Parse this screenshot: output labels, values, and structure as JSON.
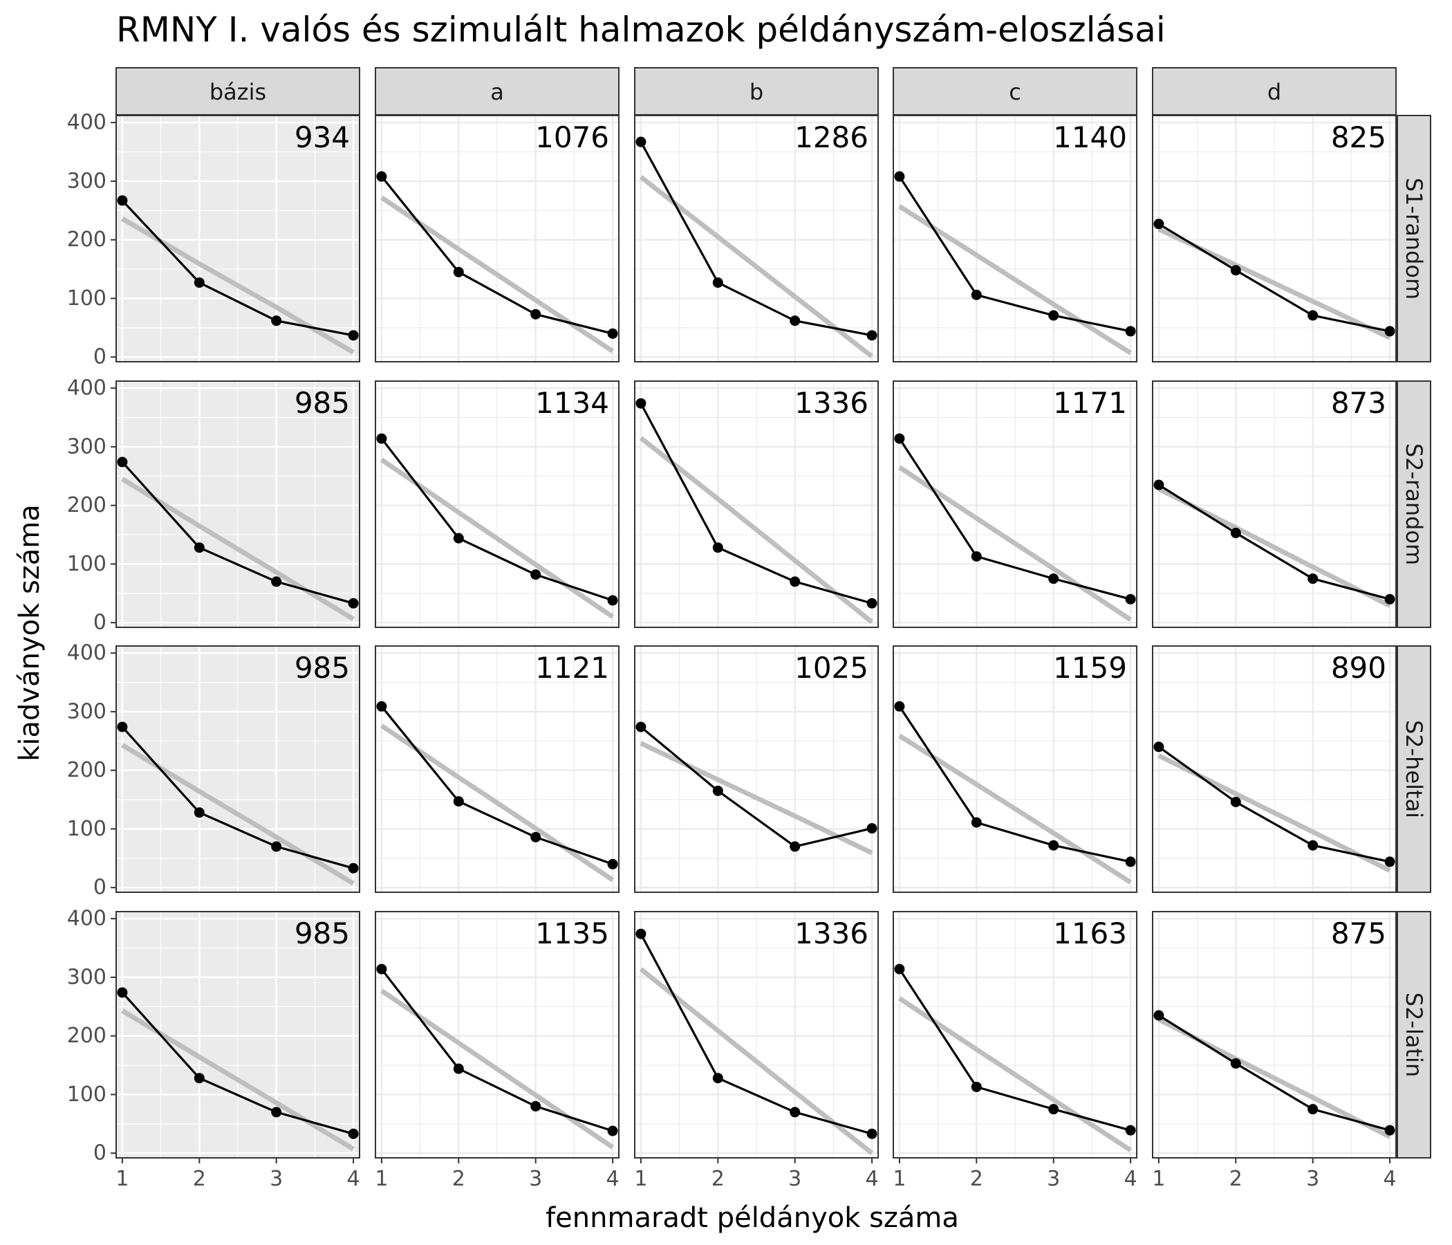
{
  "chart_data": {
    "type": "line",
    "title": "RMNY I. valós és szimulált halmazok példányszám-eloszlásai",
    "xlabel": "fennmaradt példányok száma",
    "ylabel": "kiadványok száma",
    "x_ticks": [
      "1",
      "2",
      "3",
      "4"
    ],
    "y_ticks": [
      "0",
      "100",
      "200",
      "300",
      "400"
    ],
    "xlim": [
      0.92,
      4.08
    ],
    "ylim": [
      -8,
      412
    ],
    "columns": [
      "bázis",
      "a",
      "b",
      "c",
      "d"
    ],
    "rows": [
      "S1-random",
      "S2-random",
      "S2-heltai",
      "S2-latin"
    ],
    "highlighted_column": "bázis",
    "grid": true,
    "x": [
      1,
      2,
      3,
      4
    ],
    "panels": [
      {
        "row": "S1-random",
        "column": "bázis",
        "total": "934",
        "values": [
          267,
          127,
          62,
          37
        ],
        "fit": [
          236,
          159,
          85,
          8
        ]
      },
      {
        "row": "S1-random",
        "column": "a",
        "total": "1076",
        "values": [
          308,
          145,
          73,
          40
        ],
        "fit": [
          272,
          184,
          97,
          10
        ]
      },
      {
        "row": "S1-random",
        "column": "b",
        "total": "1286",
        "values": [
          367,
          127,
          62,
          37
        ],
        "fit": [
          307,
          205,
          103,
          1
        ]
      },
      {
        "row": "S1-random",
        "column": "c",
        "total": "1140",
        "values": [
          308,
          106,
          71,
          44
        ],
        "fit": [
          257,
          174,
          90,
          7
        ]
      },
      {
        "row": "S1-random",
        "column": "d",
        "total": "825",
        "values": [
          227,
          148,
          71,
          44
        ],
        "fit": [
          218,
          157,
          95,
          33
        ]
      },
      {
        "row": "S2-random",
        "column": "bázis",
        "total": "985",
        "values": [
          274,
          128,
          70,
          33
        ],
        "fit": [
          245,
          165,
          86,
          6
        ]
      },
      {
        "row": "S2-random",
        "column": "a",
        "total": "1134",
        "values": [
          314,
          144,
          82,
          38
        ],
        "fit": [
          278,
          188,
          99,
          10
        ]
      },
      {
        "row": "S2-random",
        "column": "b",
        "total": "1336",
        "values": [
          374,
          128,
          70,
          33
        ],
        "fit": [
          315,
          211,
          106,
          1
        ]
      },
      {
        "row": "S2-random",
        "column": "c",
        "total": "1171",
        "values": [
          314,
          113,
          75,
          40
        ],
        "fit": [
          265,
          178,
          92,
          5
        ]
      },
      {
        "row": "S2-random",
        "column": "d",
        "total": "873",
        "values": [
          235,
          153,
          75,
          40
        ],
        "fit": [
          228,
          162,
          95,
          29
        ]
      },
      {
        "row": "S2-heltai",
        "column": "bázis",
        "total": "985",
        "values": [
          274,
          128,
          70,
          33
        ],
        "fit": [
          243,
          164,
          86,
          7
        ]
      },
      {
        "row": "S2-heltai",
        "column": "a",
        "total": "1121",
        "values": [
          309,
          147,
          86,
          40
        ],
        "fit": [
          276,
          188,
          101,
          13
        ]
      },
      {
        "row": "S2-heltai",
        "column": "b",
        "total": "1025",
        "values": [
          274,
          165,
          70,
          101
        ],
        "fit": [
          246,
          184,
          122,
          59
        ]
      },
      {
        "row": "S2-heltai",
        "column": "c",
        "total": "1159",
        "values": [
          309,
          111,
          72,
          44
        ],
        "fit": [
          259,
          176,
          93,
          9
        ]
      },
      {
        "row": "S2-heltai",
        "column": "d",
        "total": "890",
        "values": [
          240,
          146,
          72,
          44
        ],
        "fit": [
          225,
          160,
          95,
          29
        ]
      },
      {
        "row": "S2-latin",
        "column": "bázis",
        "total": "985",
        "values": [
          274,
          128,
          70,
          33
        ],
        "fit": [
          243,
          164,
          86,
          7
        ]
      },
      {
        "row": "S2-latin",
        "column": "a",
        "total": "1135",
        "values": [
          314,
          144,
          80,
          38
        ],
        "fit": [
          277,
          188,
          99,
          10
        ]
      },
      {
        "row": "S2-latin",
        "column": "b",
        "total": "1336",
        "values": [
          374,
          128,
          70,
          33
        ],
        "fit": [
          314,
          209,
          104,
          0
        ]
      },
      {
        "row": "S2-latin",
        "column": "c",
        "total": "1163",
        "values": [
          314,
          113,
          75,
          39
        ],
        "fit": [
          264,
          177,
          91,
          5
        ]
      },
      {
        "row": "S2-latin",
        "column": "d",
        "total": "875",
        "values": [
          235,
          153,
          75,
          39
        ],
        "fit": [
          228,
          161,
          95,
          28
        ]
      }
    ],
    "colors": {
      "line": "#000000",
      "fit_line": "#bebebe",
      "panel_bg": "#ffffff",
      "highlight_bg": "#ebebeb",
      "grid": "#ebebeb",
      "grid_on_highlight": "#ffffff",
      "strip_bg": "#d9d9d9",
      "border": "#333333",
      "tick_label": "#4d4d4d"
    }
  }
}
